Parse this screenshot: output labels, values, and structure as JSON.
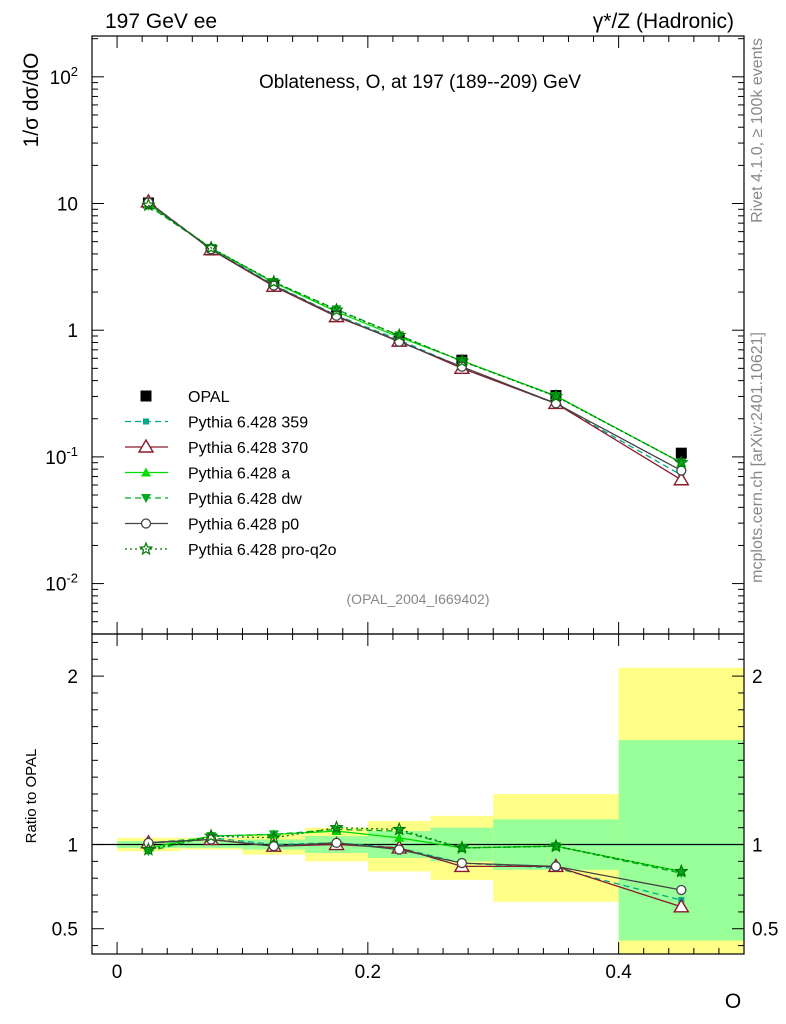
{
  "header": {
    "left_label": "197 GeV ee",
    "right_label": "γ*/Z (Hadronic)"
  },
  "side_labels": {
    "rivet": "Rivet 4.1.0, ≥ 100k events",
    "mcplots": "mcplots.cern.ch [arXiv:2401.10621]"
  },
  "watermark": "(OPAL_2004_I669402)",
  "colors": {
    "band_data_total": "#ffff88",
    "band_data_stat": "#99ff99",
    "p359": "#00aa88",
    "p370": "#8b1a2b",
    "pa": "#00dd00",
    "pdw": "#00aa22",
    "pp0": "#444444",
    "pq2o": "#007700"
  },
  "chart_data": [
    {
      "type": "line",
      "panel": "main",
      "title": "Oblateness, O, at 197 (189--209) GeV",
      "ylabel": "1/σ  dσ/dO",
      "yscale": "log",
      "xlim": [
        -0.02,
        0.5
      ],
      "ylim": [
        0.004,
        210
      ],
      "y_tick_labels": [
        "10^-2",
        "10^-1",
        "1",
        "10",
        "10^2"
      ],
      "x": [
        0.025,
        0.075,
        0.125,
        0.175,
        0.225,
        0.275,
        0.35,
        0.45
      ],
      "x_edges": [
        0.0,
        0.05,
        0.1,
        0.15,
        0.2,
        0.25,
        0.3,
        0.4,
        0.5
      ],
      "legend_position": "left-middle",
      "series": [
        {
          "name": "OPAL",
          "key": "data",
          "marker": "square",
          "values": [
            10.1,
            4.3,
            2.27,
            1.3,
            0.84,
            0.58,
            0.305,
            0.107
          ]
        },
        {
          "name": "Pythia 6.428 359",
          "key": "p359",
          "marker": "small-square",
          "dash": "dashed",
          "values": [
            10.2,
            4.42,
            2.28,
            1.31,
            0.84,
            0.51,
            0.262,
            0.072
          ]
        },
        {
          "name": "Pythia 6.428 370",
          "key": "p370",
          "marker": "open-triangle",
          "dash": "solid",
          "values": [
            10.3,
            4.32,
            2.22,
            1.28,
            0.82,
            0.5,
            0.264,
            0.066
          ]
        },
        {
          "name": "Pythia 6.428 a",
          "key": "pa",
          "marker": "triangle",
          "dash": "solid",
          "values": [
            9.9,
            4.45,
            2.38,
            1.4,
            0.88,
            0.575,
            0.303,
            0.09
          ]
        },
        {
          "name": "Pythia 6.428 dw",
          "key": "pdw",
          "marker": "triangle-down",
          "dash": "dashed",
          "values": [
            9.6,
            4.45,
            2.4,
            1.46,
            0.91,
            0.57,
            0.302,
            0.09
          ]
        },
        {
          "name": "Pythia 6.428 p0",
          "key": "pp0",
          "marker": "open-circle",
          "dash": "solid",
          "values": [
            10.2,
            4.35,
            2.25,
            1.3,
            0.81,
            0.515,
            0.265,
            0.078
          ]
        },
        {
          "name": "Pythia 6.428 pro-q2o",
          "key": "pq2o",
          "marker": "open-star",
          "dash": "dotted",
          "values": [
            9.7,
            4.47,
            2.4,
            1.44,
            0.91,
            0.57,
            0.3,
            0.09
          ]
        }
      ]
    },
    {
      "type": "line",
      "panel": "ratio",
      "ylabel": "Ratio to OPAL",
      "xlabel": "O",
      "ylim": [
        0.35,
        2.25
      ],
      "xlim": [
        -0.02,
        0.5
      ],
      "y_tick_labels": [
        "0.5",
        "1",
        "2"
      ],
      "x_tick_labels": [
        "0",
        "0.2",
        "0.4"
      ],
      "x_edges": [
        0.0,
        0.05,
        0.1,
        0.15,
        0.2,
        0.25,
        0.3,
        0.4,
        0.5
      ],
      "band_total": {
        "low": [
          0.96,
          0.97,
          0.94,
          0.9,
          0.84,
          0.79,
          0.66,
          0.33
        ],
        "high": [
          1.04,
          1.04,
          1.06,
          1.1,
          1.14,
          1.17,
          1.3,
          2.05
        ]
      },
      "band_stat": {
        "low": [
          0.98,
          0.98,
          0.97,
          0.95,
          0.92,
          0.9,
          0.85,
          0.43
        ],
        "high": [
          1.02,
          1.02,
          1.03,
          1.05,
          1.08,
          1.1,
          1.15,
          1.62
        ]
      },
      "x": [
        0.025,
        0.075,
        0.125,
        0.175,
        0.225,
        0.275,
        0.35,
        0.45
      ],
      "series": [
        {
          "name": "Pythia 6.428 359",
          "key": "p359",
          "marker": "small-square",
          "dash": "dashed",
          "values": [
            1.01,
            1.04,
            1.0,
            1.01,
            0.98,
            0.89,
            0.86,
            0.67
          ]
        },
        {
          "name": "Pythia 6.428 370",
          "key": "p370",
          "marker": "open-triangle",
          "dash": "solid",
          "values": [
            1.01,
            1.03,
            0.99,
            1.0,
            0.98,
            0.87,
            0.87,
            0.63
          ]
        },
        {
          "name": "Pythia 6.428 a",
          "key": "pa",
          "marker": "triangle",
          "dash": "solid",
          "values": [
            0.98,
            1.05,
            1.06,
            1.08,
            1.04,
            0.98,
            0.99,
            0.84
          ]
        },
        {
          "name": "Pythia 6.428 dw",
          "key": "pdw",
          "marker": "triangle-down",
          "dash": "dashed",
          "values": [
            0.96,
            1.05,
            1.06,
            1.09,
            1.08,
            0.98,
            0.99,
            0.83
          ]
        },
        {
          "name": "Pythia 6.428 p0",
          "key": "pp0",
          "marker": "open-circle",
          "dash": "solid",
          "values": [
            1.01,
            1.03,
            0.99,
            1.01,
            0.97,
            0.89,
            0.87,
            0.73
          ]
        },
        {
          "name": "Pythia 6.428 pro-q2o",
          "key": "pq2o",
          "marker": "open-star",
          "dash": "dotted",
          "values": [
            0.97,
            1.05,
            1.04,
            1.1,
            1.09,
            0.98,
            0.99,
            0.84
          ]
        }
      ]
    }
  ]
}
